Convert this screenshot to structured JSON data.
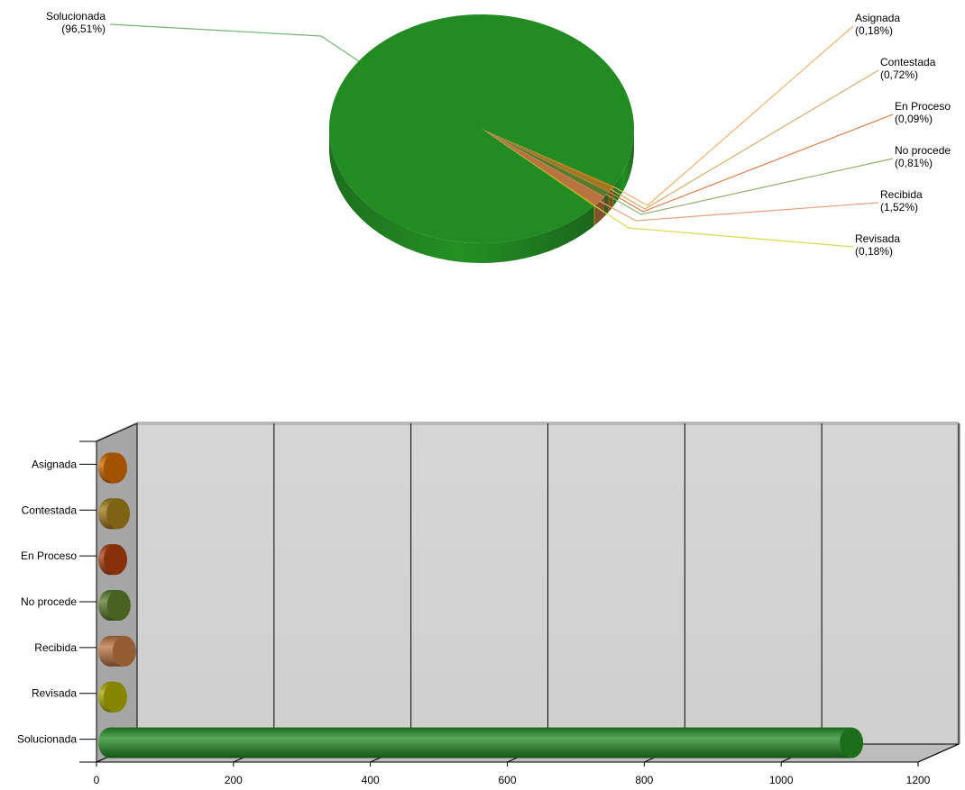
{
  "chart_data": [
    {
      "type": "pie",
      "categories": [
        "Asignada",
        "Contestada",
        "En Proceso",
        "No procede",
        "Recibida",
        "Revisada",
        "Solucionada"
      ],
      "values": [
        0.18,
        0.72,
        0.09,
        0.81,
        1.52,
        0.18,
        96.51
      ],
      "labels": [
        "(0,18%)",
        "(0,72%)",
        "(0,09%)",
        "(0,81%)",
        "(1,52%)",
        "(0,18%)",
        "(96,51%)"
      ],
      "unit": "%",
      "colors": [
        "#CC6600",
        "#A07A1A",
        "#A93D0F",
        "#5A7A28",
        "#B9733F",
        "#A6A600",
        "#228B22"
      ],
      "leader_colors": [
        "#F5B06E",
        "#D7AB6B",
        "#E07B45",
        "#8FB06A",
        "#E8A27A",
        "#D9D94A",
        "#72B672"
      ]
    },
    {
      "type": "bar",
      "orientation": "horizontal",
      "categories": [
        "Asignada",
        "Contestada",
        "En Proceso",
        "No procede",
        "Recibida",
        "Revisada",
        "Solucionada"
      ],
      "values": [
        2,
        8,
        1,
        9,
        17,
        2,
        1079
      ],
      "xlim": [
        0,
        1200
      ],
      "xticks": [
        "0",
        "200",
        "400",
        "600",
        "800",
        "1000",
        "1200"
      ],
      "grid": true,
      "colors": [
        "#CC6600",
        "#A07A1A",
        "#A93D0F",
        "#5A7A28",
        "#B9733F",
        "#A6A600",
        "#228B22"
      ]
    }
  ]
}
